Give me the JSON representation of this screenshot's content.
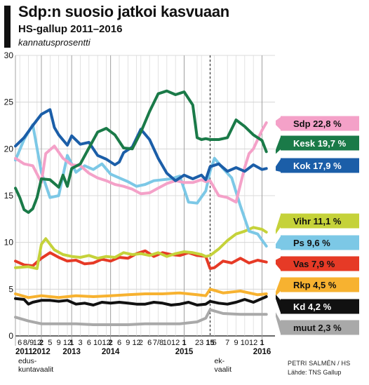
{
  "header": {
    "title": "Sdp:n suosio jatkoi kasvuaan",
    "subtitle": "HS-gallup 2011–2016",
    "unit": "kannatusprosentti"
  },
  "credit": {
    "author": "PETRI SALMÉN / HS",
    "source": "Lähde: TNS Gallup"
  },
  "colors": {
    "Sdp": "#f4a1c8",
    "Kesk": "#1a7a48",
    "Kok": "#1b5ea8",
    "Vihr": "#c5d23a",
    "Ps": "#7cc8e6",
    "Vas": "#e63a26",
    "Rkp": "#f7b230",
    "Kd": "#111111",
    "muut": "#a9a9a9"
  },
  "chart_data": {
    "type": "line",
    "ylim": [
      0,
      30
    ],
    "yticks": [
      0,
      5,
      10,
      15,
      20,
      25,
      30
    ],
    "xlim": [
      0,
      60
    ],
    "grid": true,
    "x_month_ticks": [
      {
        "x": 1,
        "label": "6"
      },
      {
        "x": 3,
        "label": "8/9"
      },
      {
        "x": 5,
        "label": "12"
      },
      {
        "x": 6,
        "label": "2",
        "bold": true
      },
      {
        "x": 8,
        "label": "5"
      },
      {
        "x": 10,
        "label": "9"
      },
      {
        "x": 12,
        "label": "12"
      },
      {
        "x": 13,
        "label": "1",
        "bold": true
      },
      {
        "x": 15,
        "label": "3"
      },
      {
        "x": 17,
        "label": "6"
      },
      {
        "x": 19,
        "label": "10"
      },
      {
        "x": 21,
        "label": "12"
      },
      {
        "x": 22,
        "label": "2",
        "bold": true
      },
      {
        "x": 24,
        "label": "6"
      },
      {
        "x": 26,
        "label": "9"
      },
      {
        "x": 28,
        "label": "12"
      },
      {
        "x": 29,
        "label": "2"
      },
      {
        "x": 31,
        "label": "6"
      },
      {
        "x": 33,
        "label": "7/8"
      },
      {
        "x": 35,
        "label": "10"
      },
      {
        "x": 37,
        "label": "12"
      },
      {
        "x": 39,
        "label": "1",
        "bold": true
      },
      {
        "x": 42,
        "label": "2"
      },
      {
        "x": 43,
        "label": "3"
      },
      {
        "x": 45,
        "label": "15",
        "bold": true
      },
      {
        "x": 46,
        "label": "5"
      },
      {
        "x": 49,
        "label": "7"
      },
      {
        "x": 51,
        "label": "9"
      },
      {
        "x": 53,
        "label": "10"
      },
      {
        "x": 55,
        "label": "12"
      },
      {
        "x": 57,
        "label": "1",
        "bold": true
      }
    ],
    "x_year_labels": [
      {
        "x": 0,
        "label": "2011"
      },
      {
        "x": 6,
        "label": "2012"
      },
      {
        "x": 13,
        "label": "2013"
      },
      {
        "x": 22,
        "label": "2014"
      },
      {
        "x": 39,
        "label": "2015"
      },
      {
        "x": 57,
        "label": "2016"
      }
    ],
    "x_annotations": [
      {
        "x": 0,
        "lines": [
          "edus-",
          "kuntavaalit"
        ]
      },
      {
        "x": 45,
        "lines": [
          "ek-",
          "vaalit"
        ]
      }
    ],
    "election_marker_x": 45,
    "series": [
      {
        "name": "muut",
        "label": "muut 2,3 %",
        "x": [
          0,
          3,
          6,
          10,
          14,
          18,
          22,
          26,
          30,
          34,
          38,
          42,
          44,
          45,
          48,
          52,
          56,
          58
        ],
        "values": [
          2.0,
          1.6,
          1.3,
          1.3,
          1.3,
          1.2,
          1.2,
          1.2,
          1.3,
          1.3,
          1.3,
          1.5,
          1.9,
          2.8,
          2.4,
          2.3,
          2.3,
          2.3
        ]
      },
      {
        "name": "Rkp",
        "label": "Rkp 4,5 %",
        "x": [
          0,
          3,
          6,
          10,
          14,
          18,
          22,
          26,
          30,
          34,
          38,
          42,
          44,
          45,
          48,
          52,
          56,
          58
        ],
        "values": [
          4.5,
          4.1,
          4.3,
          4.1,
          4.3,
          4.2,
          4.3,
          4.4,
          4.5,
          4.5,
          4.6,
          4.4,
          4.3,
          5.0,
          4.6,
          4.8,
          4.4,
          4.5
        ]
      },
      {
        "name": "Kd",
        "label": "Kd 4,2 %",
        "x": [
          0,
          2,
          3,
          4,
          6,
          8,
          10,
          12,
          14,
          16,
          18,
          20,
          22,
          24,
          26,
          28,
          30,
          32,
          34,
          36,
          38,
          40,
          42,
          44,
          45,
          47,
          49,
          51,
          53,
          55,
          57,
          58
        ],
        "values": [
          4.0,
          3.9,
          3.4,
          3.6,
          3.8,
          3.8,
          3.7,
          3.8,
          3.4,
          3.5,
          3.3,
          3.6,
          3.5,
          3.6,
          3.5,
          3.4,
          3.4,
          3.6,
          3.5,
          3.3,
          3.4,
          3.6,
          3.3,
          3.4,
          3.7,
          3.5,
          3.4,
          3.6,
          3.9,
          3.6,
          4.0,
          4.2
        ]
      },
      {
        "name": "Vas",
        "label": "Vas 7,9 %",
        "x": [
          0,
          2,
          4,
          6,
          8,
          10,
          12,
          14,
          16,
          18,
          20,
          22,
          24,
          26,
          28,
          30,
          32,
          34,
          36,
          38,
          40,
          42,
          44,
          45,
          46,
          48,
          50,
          52,
          54,
          56,
          58
        ],
        "values": [
          8.0,
          7.6,
          7.5,
          8.3,
          8.9,
          8.4,
          8.0,
          8.1,
          7.7,
          7.8,
          8.2,
          8.0,
          8.4,
          8.3,
          8.8,
          9.1,
          8.5,
          8.9,
          8.7,
          8.6,
          8.9,
          8.6,
          8.5,
          7.2,
          7.3,
          8.0,
          7.8,
          8.3,
          7.8,
          8.1,
          7.9
        ]
      },
      {
        "name": "Vihr",
        "label": "Vihr 11,1 %",
        "x": [
          0,
          3,
          5,
          6,
          7,
          9,
          11,
          13,
          15,
          17,
          19,
          21,
          23,
          25,
          27,
          29,
          31,
          33,
          35,
          37,
          39,
          41,
          43,
          44,
          45,
          47,
          49,
          51,
          53,
          55,
          57,
          58
        ],
        "values": [
          7.3,
          7.4,
          7.2,
          9.8,
          10.4,
          9.2,
          8.7,
          8.5,
          8.4,
          8.6,
          8.3,
          8.5,
          8.4,
          8.9,
          8.7,
          8.8,
          8.6,
          8.9,
          8.5,
          8.8,
          9.0,
          8.9,
          8.7,
          8.5,
          8.6,
          9.3,
          10.2,
          10.9,
          11.2,
          11.6,
          11.4,
          11.1
        ]
      },
      {
        "name": "Ps",
        "label": "Ps 9,6 %",
        "x": [
          0,
          2,
          4,
          6,
          8,
          10,
          12,
          14,
          16,
          18,
          20,
          22,
          24,
          26,
          28,
          30,
          32,
          34,
          36,
          38,
          40,
          42,
          44,
          45,
          46,
          48,
          50,
          52,
          54,
          56,
          58
        ],
        "values": [
          18.8,
          21.0,
          22.6,
          17.5,
          14.8,
          15.0,
          19.3,
          17.5,
          18.2,
          17.8,
          18.4,
          17.3,
          16.9,
          16.5,
          16.0,
          16.2,
          16.6,
          16.7,
          16.8,
          17.1,
          14.3,
          14.2,
          15.5,
          17.6,
          19.0,
          17.9,
          16.9,
          13.9,
          11.2,
          10.9,
          9.6
        ]
      },
      {
        "name": "Sdp",
        "label": "Sdp 22,8 %",
        "x": [
          0,
          2,
          4,
          6,
          7,
          9,
          11,
          13,
          15,
          17,
          19,
          21,
          23,
          25,
          27,
          29,
          31,
          33,
          35,
          37,
          39,
          41,
          43,
          44,
          45,
          47,
          49,
          51,
          52,
          53,
          54,
          55,
          56,
          57,
          58
        ],
        "values": [
          19.0,
          18.4,
          18.2,
          16.4,
          19.5,
          20.3,
          19.0,
          18.3,
          18.2,
          17.4,
          16.9,
          16.6,
          16.2,
          16.0,
          15.7,
          15.2,
          15.3,
          15.8,
          16.3,
          16.6,
          16.4,
          16.4,
          16.7,
          16.5,
          16.6,
          15.0,
          14.8,
          14.3,
          16.2,
          18.0,
          19.5,
          20.0,
          21.0,
          22.0,
          22.8
        ]
      },
      {
        "name": "Kok",
        "label": "Kok 17,9 %",
        "x": [
          0,
          2,
          4,
          6,
          8,
          9,
          10,
          12,
          13,
          15,
          17,
          19,
          21,
          23,
          24,
          25,
          27,
          29,
          31,
          33,
          35,
          37,
          39,
          41,
          43,
          44,
          45,
          47,
          49,
          51,
          53,
          55,
          57,
          58
        ],
        "values": [
          20.3,
          21.2,
          22.5,
          23.7,
          24.2,
          22.3,
          21.5,
          20.4,
          21.4,
          20.5,
          20.7,
          19.3,
          18.9,
          18.3,
          18.6,
          19.6,
          20.2,
          22.1,
          21.0,
          19.0,
          17.4,
          16.6,
          17.2,
          16.8,
          17.2,
          16.7,
          18.1,
          18.4,
          17.6,
          18.0,
          17.6,
          18.3,
          17.8,
          17.9
        ]
      },
      {
        "name": "Kesk",
        "label": "Kesk 19,7 %",
        "x": [
          0,
          1,
          2,
          3,
          4,
          5,
          6,
          8,
          10,
          11,
          12,
          13,
          15,
          17,
          19,
          21,
          23,
          25,
          27,
          29,
          31,
          33,
          35,
          37,
          39,
          41,
          42,
          43,
          44,
          45,
          47,
          49,
          51,
          53,
          55,
          57,
          58
        ],
        "values": [
          15.8,
          14.8,
          13.5,
          13.2,
          13.6,
          14.8,
          16.8,
          16.7,
          15.9,
          17.2,
          16.0,
          17.9,
          18.4,
          20.1,
          21.8,
          22.2,
          21.5,
          20.1,
          20.0,
          21.8,
          24.0,
          25.9,
          26.2,
          25.8,
          26.1,
          24.7,
          21.2,
          21.0,
          21.1,
          21.0,
          21.0,
          21.2,
          23.1,
          22.4,
          21.5,
          20.9,
          19.7
        ]
      }
    ]
  }
}
